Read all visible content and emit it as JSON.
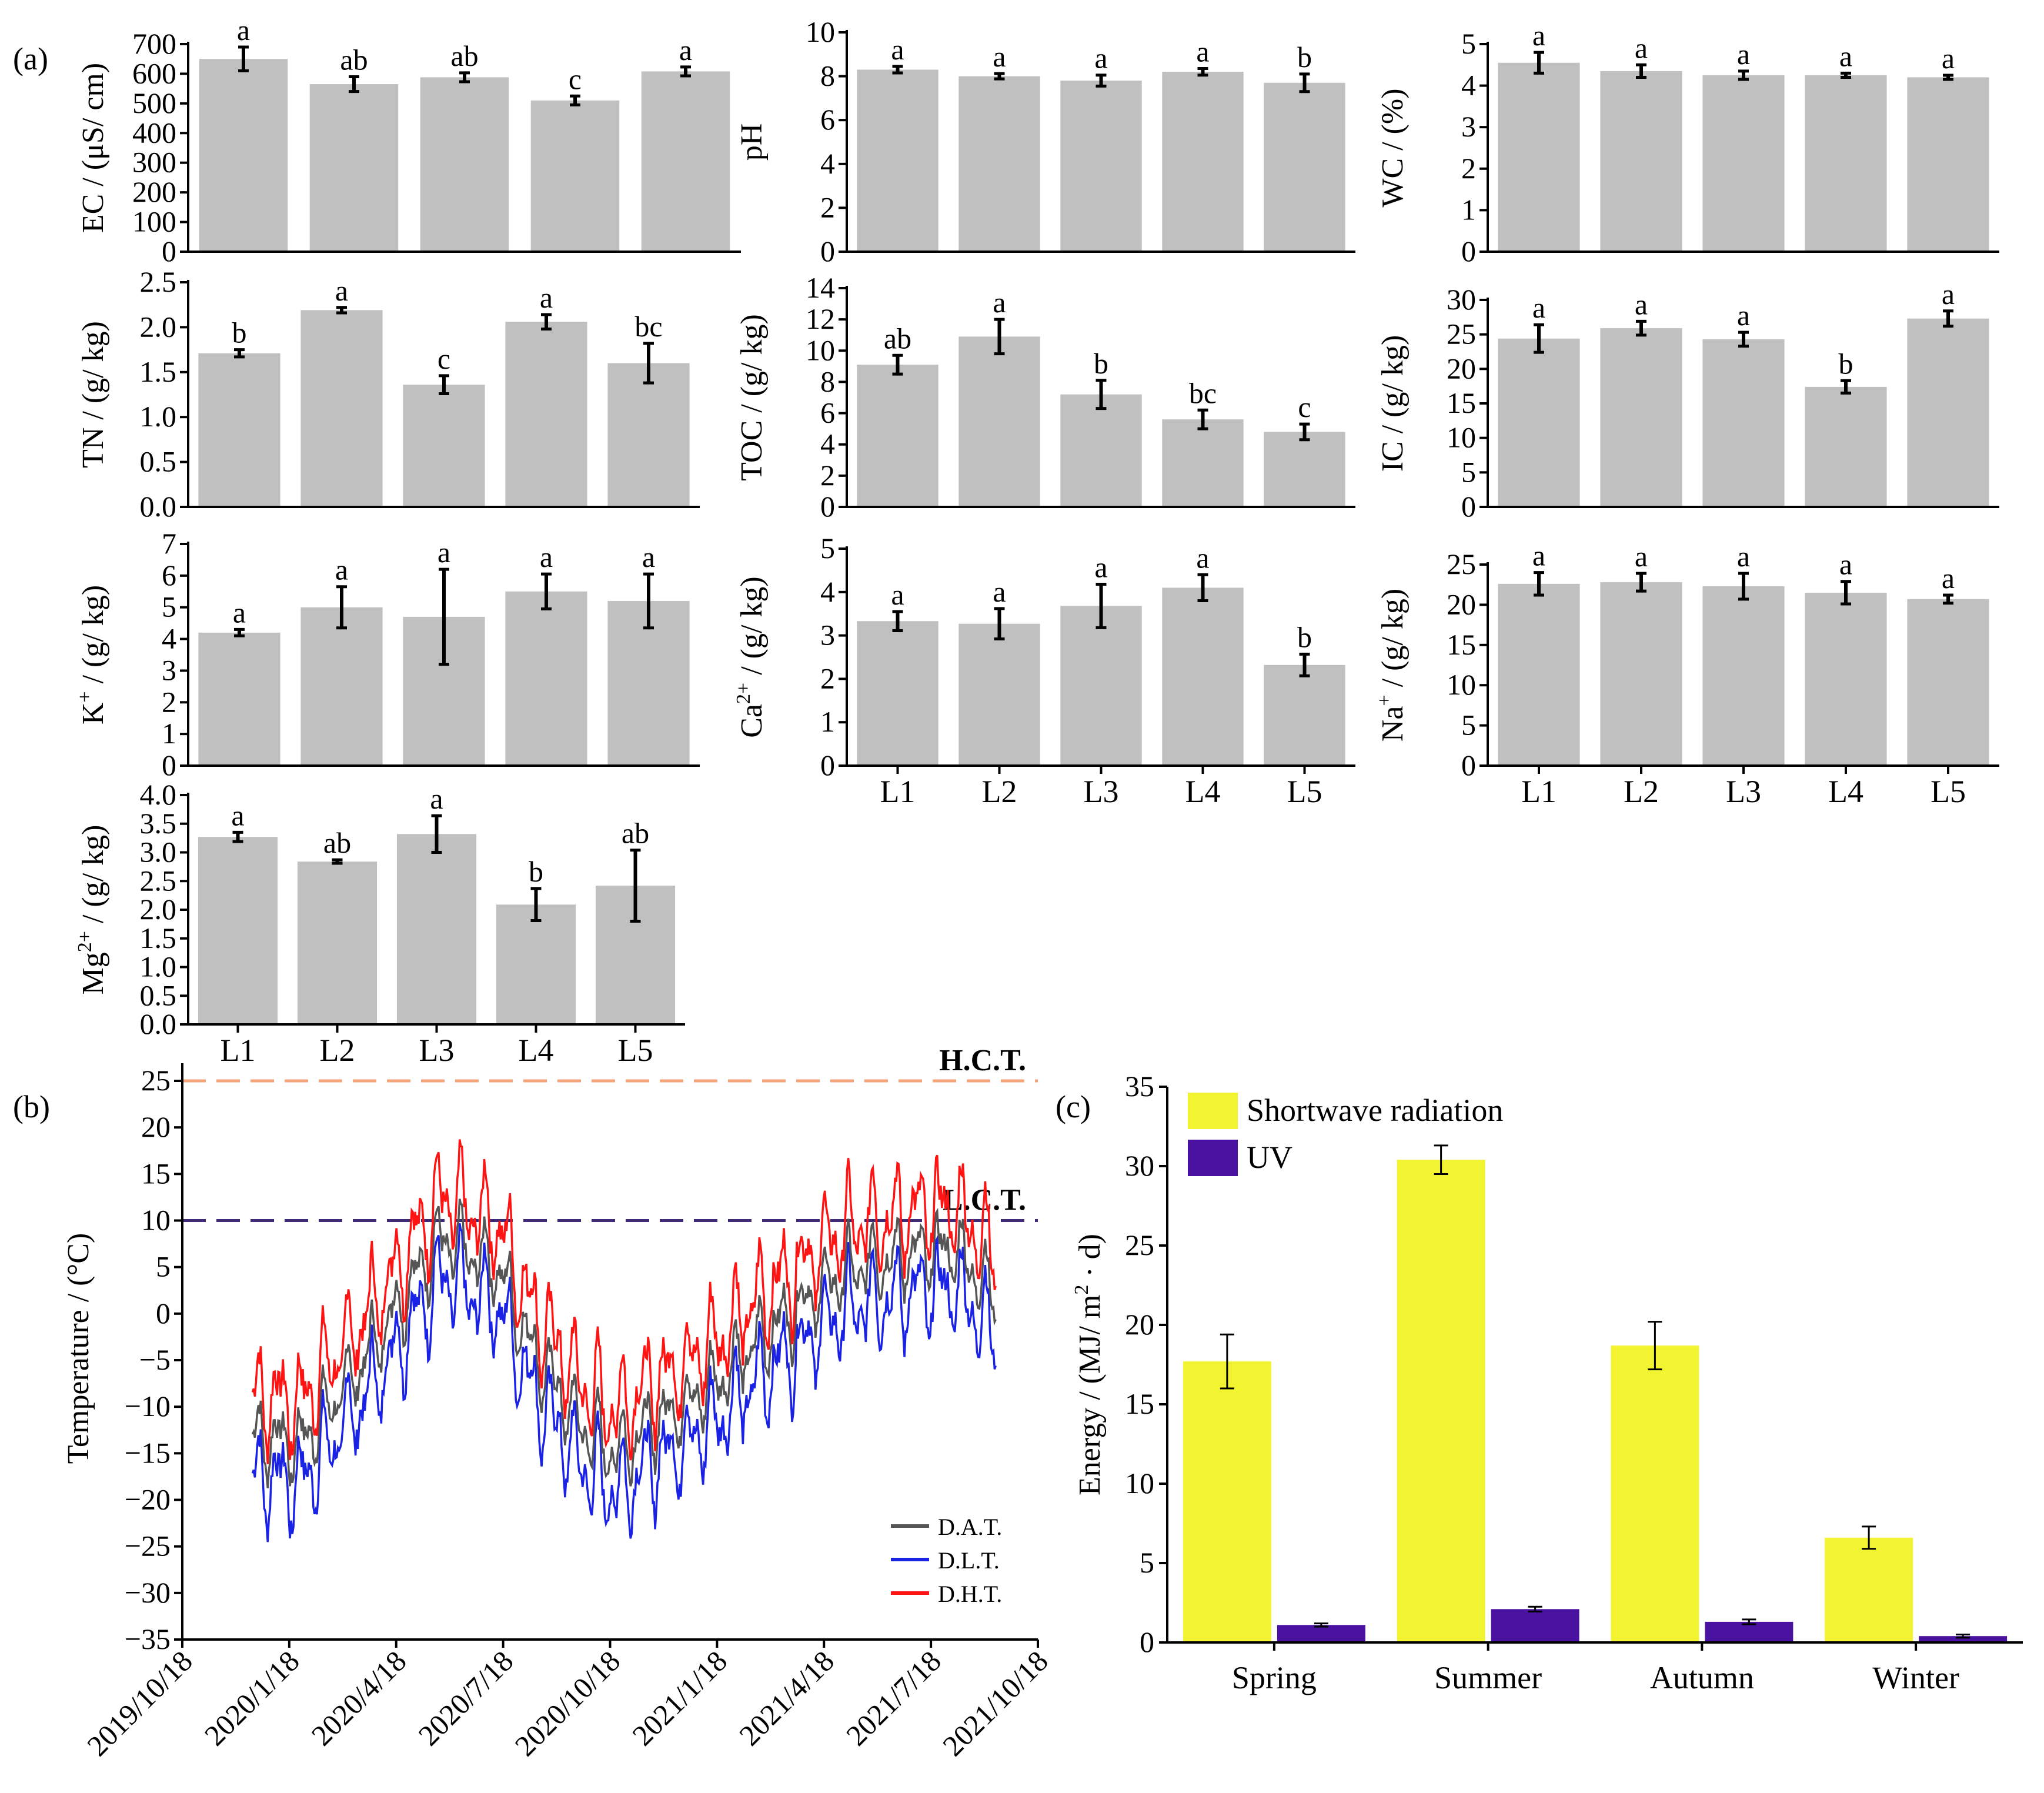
{
  "panel_labels": {
    "a": "(a)",
    "b": "(b)",
    "c": "(c)"
  },
  "chart_data": [
    {
      "id": "EC",
      "type": "bar",
      "ylabel": "EC / (μS/ cm)",
      "ylim": [
        0,
        700
      ],
      "yticks": [
        "0",
        "100",
        "200",
        "300",
        "400",
        "500",
        "600",
        "700"
      ],
      "categories": [
        "L1",
        "L2",
        "L3",
        "L4",
        "L5"
      ],
      "values": [
        650,
        565,
        588,
        510,
        608
      ],
      "errors": [
        40,
        25,
        15,
        15,
        15
      ],
      "letters": [
        "a",
        "ab",
        "ab",
        "c",
        "a"
      ],
      "show_x_labels": false
    },
    {
      "id": "pH",
      "type": "bar",
      "ylabel": "pH",
      "ylim": [
        0,
        10
      ],
      "yticks": [
        "0",
        "2",
        "4",
        "6",
        "8",
        "10"
      ],
      "categories": [
        "L1",
        "L2",
        "L3",
        "L4",
        "L5"
      ],
      "values": [
        8.3,
        8.0,
        7.8,
        8.2,
        7.7
      ],
      "errors": [
        0.15,
        0.12,
        0.25,
        0.15,
        0.4
      ],
      "letters": [
        "a",
        "a",
        "a",
        "a",
        "b"
      ],
      "show_x_labels": false
    },
    {
      "id": "WC",
      "type": "bar",
      "ylabel": "WC / (%)",
      "ylim": [
        0,
        5
      ],
      "yticks": [
        "0",
        "1",
        "2",
        "3",
        "4",
        "5"
      ],
      "categories": [
        "L1",
        "L2",
        "L3",
        "L4",
        "L5"
      ],
      "values": [
        4.55,
        4.35,
        4.25,
        4.25,
        4.2
      ],
      "errors": [
        0.25,
        0.15,
        0.1,
        0.05,
        0.05
      ],
      "letters": [
        "a",
        "a",
        "a",
        "a",
        "a"
      ],
      "show_x_labels": false
    },
    {
      "id": "TN",
      "type": "bar",
      "ylabel": "TN / (g/ kg)",
      "ylim": [
        0,
        2.5
      ],
      "yticks": [
        "0.0",
        "0.5",
        "1.0",
        "1.5",
        "2.0",
        "2.5"
      ],
      "categories": [
        "L1",
        "L2",
        "L3",
        "L4",
        "L5"
      ],
      "values": [
        1.71,
        2.19,
        1.36,
        2.06,
        1.6
      ],
      "errors": [
        0.04,
        0.03,
        0.1,
        0.08,
        0.22
      ],
      "letters": [
        "b",
        "a",
        "c",
        "a",
        "bc"
      ],
      "show_x_labels": false
    },
    {
      "id": "TOC",
      "type": "bar",
      "ylabel": "TOC / (g/ kg)",
      "ylim": [
        0,
        14
      ],
      "yticks": [
        "0",
        "2",
        "4",
        "6",
        "8",
        "10",
        "12",
        "14"
      ],
      "categories": [
        "L1",
        "L2",
        "L3",
        "L4",
        "L5"
      ],
      "values": [
        9.1,
        10.9,
        7.2,
        5.6,
        4.8
      ],
      "errors": [
        0.6,
        1.1,
        0.9,
        0.6,
        0.5
      ],
      "letters": [
        "ab",
        "a",
        "b",
        "bc",
        "c"
      ],
      "show_x_labels": false
    },
    {
      "id": "IC",
      "type": "bar",
      "ylabel": "IC / (g/ kg)",
      "ylim": [
        0,
        30
      ],
      "yticks": [
        "0",
        "5",
        "10",
        "15",
        "20",
        "25",
        "30"
      ],
      "categories": [
        "L1",
        "L2",
        "L3",
        "L4",
        "L5"
      ],
      "values": [
        24.4,
        25.9,
        24.3,
        17.4,
        27.3
      ],
      "errors": [
        2.0,
        1.0,
        1.0,
        0.9,
        1.1
      ],
      "letters": [
        "a",
        "a",
        "a",
        "b",
        "a"
      ],
      "show_x_labels": false
    },
    {
      "id": "K",
      "type": "bar",
      "ylabel_main": "K",
      "ylabel_sup": "+",
      "ylabel_rest": " / (g/ kg)",
      "ylim": [
        0,
        7
      ],
      "yticks": [
        "0",
        "1",
        "2",
        "3",
        "4",
        "5",
        "6",
        "7"
      ],
      "categories": [
        "L1",
        "L2",
        "L3",
        "L4",
        "L5"
      ],
      "values": [
        4.2,
        5.0,
        4.7,
        5.5,
        5.2
      ],
      "errors": [
        0.1,
        0.65,
        1.5,
        0.55,
        0.85
      ],
      "letters": [
        "a",
        "a",
        "a",
        "a",
        "a"
      ],
      "show_x_labels": false
    },
    {
      "id": "Ca",
      "type": "bar",
      "ylabel_main": "Ca",
      "ylabel_sup": "2+",
      "ylabel_rest": " / (g/ kg)",
      "ylim": [
        0,
        5
      ],
      "yticks": [
        "0",
        "1",
        "2",
        "3",
        "4",
        "5"
      ],
      "categories": [
        "L1",
        "L2",
        "L3",
        "L4",
        "L5"
      ],
      "values": [
        3.33,
        3.27,
        3.68,
        4.1,
        2.32
      ],
      "errors": [
        0.22,
        0.35,
        0.5,
        0.3,
        0.25
      ],
      "letters": [
        "a",
        "a",
        "a",
        "a",
        "b"
      ],
      "show_x_labels": true
    },
    {
      "id": "Na",
      "type": "bar",
      "ylabel_main": "Na",
      "ylabel_sup": "+",
      "ylabel_rest": " / (g/ kg)",
      "ylim": [
        0,
        25
      ],
      "yticks": [
        "0",
        "5",
        "10",
        "15",
        "20",
        "25"
      ],
      "categories": [
        "L1",
        "L2",
        "L3",
        "L4",
        "L5"
      ],
      "values": [
        22.6,
        22.8,
        22.3,
        21.5,
        20.7
      ],
      "errors": [
        1.4,
        1.1,
        1.6,
        1.4,
        0.5
      ],
      "letters": [
        "a",
        "a",
        "a",
        "a",
        "a"
      ],
      "show_x_labels": true
    },
    {
      "id": "Mg",
      "type": "bar",
      "ylabel_main": "Mg",
      "ylabel_sup": "2+",
      "ylabel_rest": " / (g/ kg)",
      "ylim": [
        0,
        4.0
      ],
      "yticks": [
        "0.0",
        "0.5",
        "1.0",
        "1.5",
        "2.0",
        "2.5",
        "3.0",
        "3.5",
        "4.0"
      ],
      "categories": [
        "L1",
        "L2",
        "L3",
        "L4",
        "L5"
      ],
      "values": [
        3.27,
        2.84,
        3.32,
        2.09,
        2.42
      ],
      "errors": [
        0.08,
        0.03,
        0.32,
        0.28,
        0.62
      ],
      "letters": [
        "a",
        "ab",
        "a",
        "b",
        "ab"
      ],
      "show_x_labels": true
    },
    {
      "id": "temperature",
      "type": "line",
      "ylabel": "Temperature / (°C)",
      "ylim": [
        -35,
        25
      ],
      "yticks": [
        "−35",
        "−30",
        "−25",
        "−20",
        "−15",
        "−10",
        "−5",
        "0",
        "5",
        "10",
        "15",
        "20",
        "25"
      ],
      "xticks": [
        "2019/10/18",
        "2020/1/18",
        "2020/4/18",
        "2020/7/18",
        "2020/10/18",
        "2021/1/18",
        "2021/4/18",
        "2021/7/18",
        "2021/10/18"
      ],
      "x_range_days": [
        0,
        731
      ],
      "x_data_days": [
        60,
        695
      ],
      "thresholds": [
        {
          "label": "H.C.T.",
          "value": 25,
          "color": "#f4a57c"
        },
        {
          "label": "L.C.T.",
          "value": 10,
          "color": "#3f2a7a"
        }
      ],
      "series": [
        {
          "name": "D.A.T.",
          "color": "#555555",
          "offset": 0
        },
        {
          "name": "D.L.T.",
          "color": "#1a22e6",
          "offset": -4.2
        },
        {
          "name": "D.H.T.",
          "color": "#ff1414",
          "offset": 4.5
        }
      ],
      "seasonal_profile": {
        "days": [
          60,
          100,
          150,
          220,
          270,
          300,
          340,
          370,
          400,
          450,
          500,
          560,
          600,
          660,
          695
        ],
        "temps": [
          -13,
          -14,
          -6,
          8,
          5,
          -4,
          -12,
          -15,
          -12,
          -8,
          -2,
          4,
          6,
          7,
          2
        ]
      },
      "legend_position": "bottom-right"
    },
    {
      "id": "energy",
      "type": "bar",
      "ylabel_main": "Energy / (MJ/ m",
      "ylabel_sup": "2",
      "ylabel_rest": " · d)",
      "ylim": [
        0,
        35
      ],
      "yticks": [
        "0",
        "5",
        "10",
        "15",
        "20",
        "25",
        "30",
        "35"
      ],
      "categories": [
        "Spring",
        "Summer",
        "Autumn",
        "Winter"
      ],
      "series": [
        {
          "name": "Shortwave radiation",
          "color": "#f2f431",
          "values": [
            17.7,
            30.4,
            18.7,
            6.6
          ],
          "errors": [
            1.7,
            0.9,
            1.5,
            0.7
          ]
        },
        {
          "name": "UV",
          "color": "#4a12a0",
          "values": [
            1.1,
            2.1,
            1.3,
            0.4
          ],
          "errors": [
            0.1,
            0.15,
            0.15,
            0.1
          ]
        }
      ],
      "legend_position": "top-left"
    }
  ]
}
